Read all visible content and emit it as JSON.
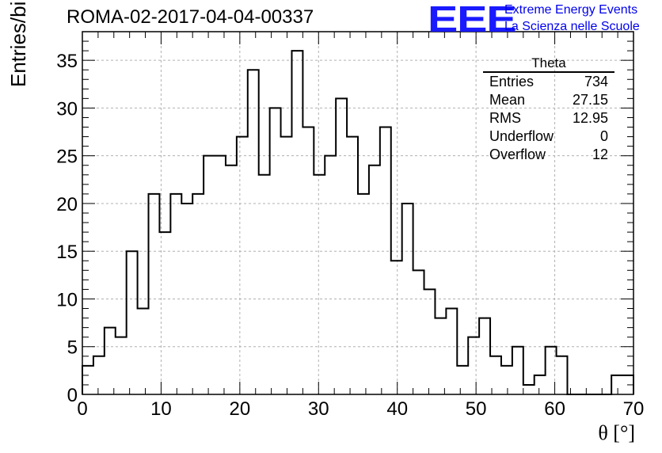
{
  "title": "ROMA-02-2017-04-04-00337",
  "logo": {
    "mark": "EEE",
    "line1": "Extreme Energy Events",
    "line2": "La Scienza nelle Scuole",
    "color": "#1a1aff"
  },
  "stats": {
    "name": "Theta",
    "rows": [
      {
        "label": "Entries",
        "value": "734"
      },
      {
        "label": "Mean",
        "value": "27.15"
      },
      {
        "label": "RMS",
        "value": "12.95"
      },
      {
        "label": "Underflow",
        "value": "0"
      },
      {
        "label": "Overflow",
        "value": "12"
      }
    ]
  },
  "chart_data": {
    "type": "histogram",
    "xlabel": "θ [°]",
    "ylabel": "Entries/bin",
    "xlim": [
      0,
      70
    ],
    "ylim": [
      0,
      38
    ],
    "xticks": [
      0,
      10,
      20,
      30,
      40,
      50,
      60,
      70
    ],
    "yticks": [
      0,
      5,
      10,
      15,
      20,
      25,
      30,
      35
    ],
    "grid": true,
    "bin_width": 1.4,
    "bin_edges_start": 0,
    "values": [
      3,
      4,
      7,
      6,
      15,
      9,
      21,
      17,
      21,
      20,
      21,
      25,
      25,
      24,
      27,
      34,
      23,
      30,
      27,
      36,
      28,
      23,
      25,
      31,
      27,
      21,
      24,
      28,
      14,
      20,
      13,
      11,
      8,
      9,
      3,
      6,
      8,
      4,
      3,
      5,
      1,
      2,
      5,
      4,
      0,
      0,
      0,
      0,
      2,
      2
    ]
  }
}
